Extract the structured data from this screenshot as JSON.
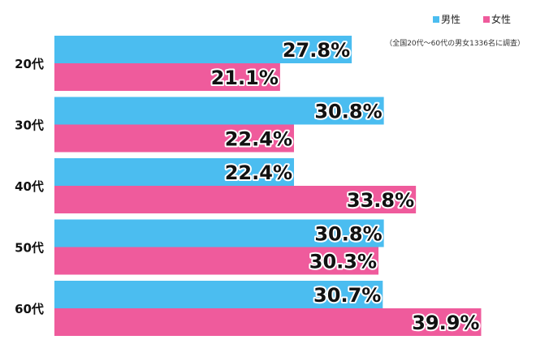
{
  "chart_data": {
    "type": "bar",
    "orientation": "horizontal",
    "categories": [
      "20代",
      "30代",
      "40代",
      "50代",
      "60代"
    ],
    "series": [
      {
        "name": "男性",
        "color": "#4bbdf0",
        "values": [
          27.8,
          30.8,
          22.4,
          30.8,
          30.7
        ]
      },
      {
        "name": "女性",
        "color": "#ef5b9c",
        "values": [
          21.1,
          22.4,
          33.8,
          30.3,
          39.9
        ]
      }
    ],
    "value_suffix": "%",
    "legend_position": "top-right",
    "annotation": "（全国20代～60代の男女1336名に調査）",
    "grid": false
  }
}
